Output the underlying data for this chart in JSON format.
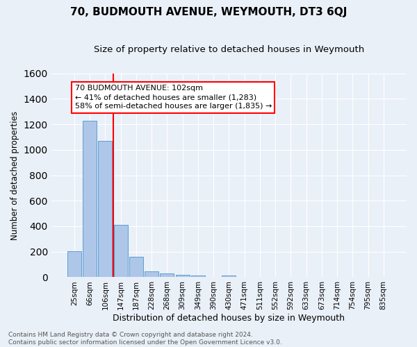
{
  "title": "70, BUDMOUTH AVENUE, WEYMOUTH, DT3 6QJ",
  "subtitle": "Size of property relative to detached houses in Weymouth",
  "xlabel": "Distribution of detached houses by size in Weymouth",
  "ylabel": "Number of detached properties",
  "categories": [
    "25sqm",
    "66sqm",
    "106sqm",
    "147sqm",
    "187sqm",
    "228sqm",
    "268sqm",
    "309sqm",
    "349sqm",
    "390sqm",
    "430sqm",
    "471sqm",
    "511sqm",
    "552sqm",
    "592sqm",
    "633sqm",
    "673sqm",
    "714sqm",
    "754sqm",
    "795sqm",
    "835sqm"
  ],
  "values": [
    205,
    1225,
    1070,
    410,
    162,
    47,
    28,
    18,
    15,
    0,
    15,
    0,
    0,
    0,
    0,
    0,
    0,
    0,
    0,
    0,
    0
  ],
  "bar_color": "#aec6e8",
  "bar_edge_color": "#5a9fd4",
  "vline_x": 2.5,
  "vline_color": "red",
  "annotation_text": "70 BUDMOUTH AVENUE: 102sqm\n← 41% of detached houses are smaller (1,283)\n58% of semi-detached houses are larger (1,835) →",
  "annotation_box_color": "white",
  "annotation_box_edge_color": "red",
  "ylim": [
    0,
    1600
  ],
  "yticks": [
    0,
    200,
    400,
    600,
    800,
    1000,
    1200,
    1400,
    1600
  ],
  "background_color": "#eaf0f8",
  "grid_color": "white",
  "footer": "Contains HM Land Registry data © Crown copyright and database right 2024.\nContains public sector information licensed under the Open Government Licence v3.0.",
  "title_fontsize": 11,
  "subtitle_fontsize": 9.5,
  "xlabel_fontsize": 9,
  "ylabel_fontsize": 8.5,
  "annotation_fontsize": 8,
  "footer_fontsize": 6.5,
  "tick_fontsize": 7.5
}
